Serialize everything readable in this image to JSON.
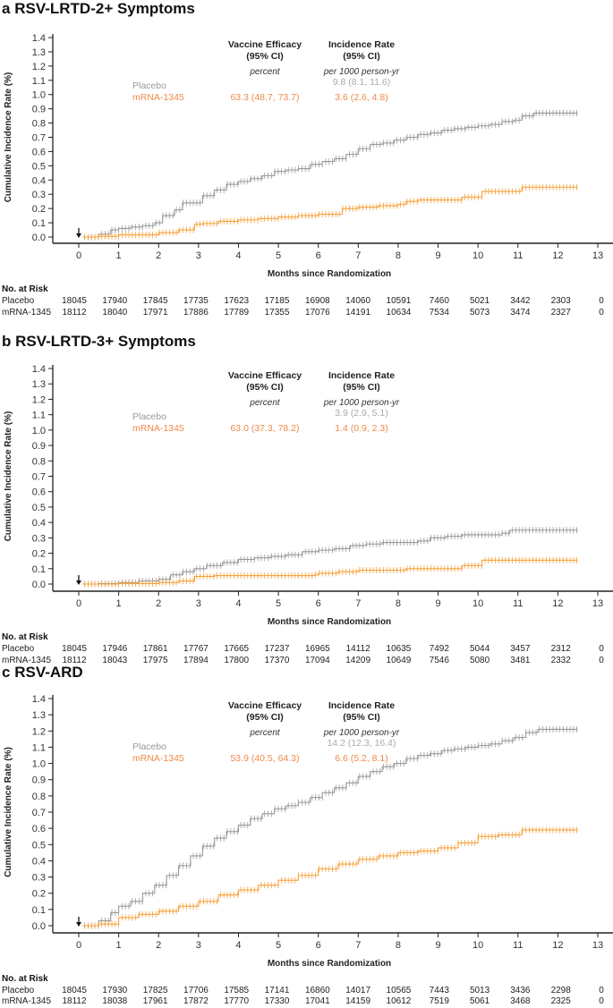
{
  "colors": {
    "placebo": "#999999",
    "vaccine": "#f5a33e",
    "vaccine_text": "#ee8a4a",
    "axis": "#222222"
  },
  "chart_data": [
    {
      "type": "line",
      "panel_letter": "a",
      "title": "RSV-LRTD-2+ Symptoms",
      "xlabel": "Months since Randomization",
      "ylabel": "Cumulative Incidence Rate (%)",
      "xlim": [
        0,
        13
      ],
      "ylim": [
        0,
        1.4
      ],
      "xticks": [
        "0",
        "1",
        "2",
        "3",
        "4",
        "5",
        "6",
        "7",
        "8",
        "9",
        "10",
        "11",
        "12",
        "13"
      ],
      "yticks": [
        "0.0",
        "0.1",
        "0.2",
        "0.3",
        "0.4",
        "0.5",
        "0.6",
        "0.7",
        "0.8",
        "0.9",
        "1.0",
        "1.1",
        "1.2",
        "1.3",
        "1.4"
      ],
      "grid": false,
      "annotation": {
        "ve_header": "Vaccine Efficacy",
        "ve_header2": "(95% CI)",
        "ve_unit": "percent",
        "ir_header": "Incidence Rate",
        "ir_header2": "(95% CI)",
        "ir_unit": "per 1000 person-yr",
        "placebo_label": "Placebo",
        "vaccine_label": "mRNA-1345",
        "placebo_ir": "9.8 (8.1, 11.6)",
        "vaccine_ve": "63.3 (48.7, 73.7)",
        "vaccine_ir": "3.6 (2.6, 4.8)"
      },
      "series": [
        {
          "name": "Placebo",
          "x": [
            0.1,
            0.5,
            0.8,
            1.0,
            1.3,
            1.6,
            1.9,
            2.1,
            2.4,
            2.6,
            2.9,
            3.1,
            3.4,
            3.7,
            4.0,
            4.3,
            4.6,
            4.9,
            5.2,
            5.5,
            5.8,
            6.1,
            6.4,
            6.7,
            7.0,
            7.3,
            7.6,
            7.9,
            8.2,
            8.5,
            8.8,
            9.1,
            9.4,
            9.7,
            10.0,
            10.3,
            10.6,
            10.9,
            11.1,
            11.4,
            11.8,
            12.5
          ],
          "y": [
            0.0,
            0.02,
            0.05,
            0.06,
            0.07,
            0.08,
            0.1,
            0.15,
            0.19,
            0.24,
            0.24,
            0.29,
            0.33,
            0.37,
            0.39,
            0.41,
            0.43,
            0.46,
            0.47,
            0.48,
            0.51,
            0.53,
            0.55,
            0.58,
            0.62,
            0.65,
            0.66,
            0.68,
            0.7,
            0.72,
            0.73,
            0.75,
            0.76,
            0.77,
            0.78,
            0.79,
            0.81,
            0.82,
            0.85,
            0.87,
            0.87,
            0.87
          ]
        },
        {
          "name": "mRNA-1345",
          "x": [
            0.1,
            0.5,
            1.0,
            1.5,
            2.0,
            2.5,
            2.9,
            3.1,
            3.5,
            4.0,
            4.5,
            5.0,
            5.5,
            6.0,
            6.4,
            6.6,
            7.0,
            7.5,
            8.0,
            8.2,
            8.5,
            9.0,
            9.5,
            9.6,
            10.0,
            10.1,
            10.5,
            11.0,
            11.1,
            11.5,
            12.5
          ],
          "y": [
            0.0,
            0.005,
            0.015,
            0.015,
            0.03,
            0.05,
            0.09,
            0.095,
            0.11,
            0.12,
            0.13,
            0.14,
            0.15,
            0.16,
            0.16,
            0.2,
            0.21,
            0.22,
            0.23,
            0.25,
            0.26,
            0.26,
            0.26,
            0.28,
            0.28,
            0.32,
            0.32,
            0.32,
            0.35,
            0.35,
            0.35
          ]
        }
      ],
      "at_risk": {
        "title": "No. at Risk",
        "rows": [
          {
            "label": "Placebo",
            "values": [
              "18045",
              "17940",
              "17845",
              "17735",
              "17623",
              "17185",
              "16908",
              "14060",
              "10591",
              "7460",
              "5021",
              "3442",
              "2303",
              "0"
            ]
          },
          {
            "label": "mRNA-1345",
            "values": [
              "18112",
              "18040",
              "17971",
              "17886",
              "17789",
              "17355",
              "17076",
              "14191",
              "10634",
              "7534",
              "5073",
              "3474",
              "2327",
              "0"
            ]
          }
        ]
      }
    },
    {
      "type": "line",
      "panel_letter": "b",
      "title": "RSV-LRTD-3+ Symptoms",
      "xlabel": "Months since Randomization",
      "ylabel": "Cumulative Incidence Rate (%)",
      "xlim": [
        0,
        13
      ],
      "ylim": [
        0,
        1.4
      ],
      "xticks": [
        "0",
        "1",
        "2",
        "3",
        "4",
        "5",
        "6",
        "7",
        "8",
        "9",
        "10",
        "11",
        "12",
        "13"
      ],
      "yticks": [
        "0.0",
        "0.1",
        "0.2",
        "0.3",
        "0.4",
        "0.5",
        "0.6",
        "0.7",
        "0.8",
        "0.9",
        "1.0",
        "1.1",
        "1.2",
        "1.3",
        "1.4"
      ],
      "grid": false,
      "annotation": {
        "ve_header": "Vaccine Efficacy",
        "ve_header2": "(95% CI)",
        "ve_unit": "percent",
        "ir_header": "Incidence Rate",
        "ir_header2": "(95% CI)",
        "ir_unit": "per 1000 person-yr",
        "placebo_label": "Placebo",
        "vaccine_label": "mRNA-1345",
        "placebo_ir": "3.9 (2.9, 5.1)",
        "vaccine_ve": "63.0 (37.3, 78.2)",
        "vaccine_ir": "1.4 (0.9, 2.3)"
      },
      "series": [
        {
          "name": "Placebo",
          "x": [
            0.1,
            0.5,
            1.0,
            1.5,
            2.0,
            2.3,
            2.6,
            2.9,
            3.2,
            3.6,
            4.0,
            4.4,
            4.8,
            5.2,
            5.6,
            6.0,
            6.4,
            6.8,
            7.2,
            7.6,
            8.0,
            8.5,
            8.8,
            9.2,
            9.6,
            10.0,
            10.6,
            10.8,
            11.2,
            12.5
          ],
          "y": [
            0.0,
            0.003,
            0.01,
            0.02,
            0.03,
            0.06,
            0.08,
            0.1,
            0.12,
            0.14,
            0.16,
            0.17,
            0.18,
            0.19,
            0.21,
            0.22,
            0.23,
            0.25,
            0.26,
            0.27,
            0.27,
            0.28,
            0.3,
            0.31,
            0.32,
            0.32,
            0.33,
            0.35,
            0.35,
            0.35
          ]
        },
        {
          "name": "mRNA-1345",
          "x": [
            0.1,
            1.0,
            2.0,
            2.5,
            2.9,
            3.4,
            4.0,
            5.0,
            5.9,
            6.0,
            6.5,
            7.0,
            7.5,
            8.0,
            8.2,
            9.0,
            9.5,
            9.6,
            10.0,
            10.1,
            11.0,
            12.5
          ],
          "y": [
            0.0,
            0.003,
            0.01,
            0.02,
            0.05,
            0.055,
            0.055,
            0.055,
            0.06,
            0.07,
            0.08,
            0.09,
            0.09,
            0.09,
            0.1,
            0.1,
            0.1,
            0.12,
            0.12,
            0.155,
            0.155,
            0.155
          ]
        }
      ],
      "at_risk": {
        "title": "No. at Risk",
        "rows": [
          {
            "label": "Placebo",
            "values": [
              "18045",
              "17946",
              "17861",
              "17767",
              "17665",
              "17237",
              "16965",
              "14112",
              "10635",
              "7492",
              "5044",
              "3457",
              "2312",
              "0"
            ]
          },
          {
            "label": "mRNA-1345",
            "values": [
              "18112",
              "18043",
              "17975",
              "17894",
              "17800",
              "17370",
              "17094",
              "14209",
              "10649",
              "7546",
              "5080",
              "3481",
              "2332",
              "0"
            ]
          }
        ]
      }
    },
    {
      "type": "line",
      "panel_letter": "c",
      "title": "RSV-ARD",
      "xlabel": "Months since Randomization",
      "ylabel": "Cumulative Incidence Rate (%)",
      "xlim": [
        0,
        13
      ],
      "ylim": [
        0,
        1.4
      ],
      "xticks": [
        "0",
        "1",
        "2",
        "3",
        "4",
        "5",
        "6",
        "7",
        "8",
        "9",
        "10",
        "11",
        "12",
        "13"
      ],
      "yticks": [
        "0.0",
        "0.1",
        "0.2",
        "0.3",
        "0.4",
        "0.5",
        "0.6",
        "0.7",
        "0.8",
        "0.9",
        "1.0",
        "1.1",
        "1.2",
        "1.3",
        "1.4"
      ],
      "grid": false,
      "annotation": {
        "ve_header": "Vaccine Efficacy",
        "ve_header2": "(95% CI)",
        "ve_unit": "percent",
        "ir_header": "Incidence Rate",
        "ir_header2": "(95% CI)",
        "ir_unit": "per 1000 person-yr",
        "placebo_label": "Placebo",
        "vaccine_label": "mRNA-1345",
        "placebo_ir": "14.2 (12.3, 16.4)",
        "vaccine_ve": "53.9 (40.5, 64.3)",
        "vaccine_ir": "6.6 (5.2, 8.1)"
      },
      "series": [
        {
          "name": "Placebo",
          "x": [
            0.1,
            0.5,
            0.8,
            1.0,
            1.3,
            1.6,
            1.9,
            2.2,
            2.5,
            2.8,
            3.1,
            3.4,
            3.7,
            4.0,
            4.3,
            4.6,
            4.9,
            5.2,
            5.5,
            5.8,
            6.1,
            6.4,
            6.7,
            7.0,
            7.3,
            7.6,
            7.9,
            8.2,
            8.5,
            8.8,
            9.1,
            9.4,
            9.7,
            10.0,
            10.3,
            10.6,
            10.9,
            11.2,
            11.5,
            12.5
          ],
          "y": [
            0.0,
            0.03,
            0.08,
            0.12,
            0.15,
            0.2,
            0.25,
            0.31,
            0.37,
            0.43,
            0.49,
            0.54,
            0.58,
            0.62,
            0.66,
            0.69,
            0.72,
            0.74,
            0.76,
            0.79,
            0.82,
            0.85,
            0.88,
            0.92,
            0.95,
            0.98,
            1.0,
            1.03,
            1.05,
            1.06,
            1.08,
            1.09,
            1.1,
            1.11,
            1.12,
            1.14,
            1.16,
            1.19,
            1.21,
            1.21
          ]
        },
        {
          "name": "mRNA-1345",
          "x": [
            0.1,
            0.5,
            1.0,
            1.5,
            2.0,
            2.5,
            3.0,
            3.5,
            4.0,
            4.5,
            5.0,
            5.5,
            6.0,
            6.5,
            7.0,
            7.5,
            8.0,
            8.5,
            9.0,
            9.5,
            10.0,
            10.5,
            11.0,
            11.1,
            12.5
          ],
          "y": [
            0.0,
            0.01,
            0.05,
            0.07,
            0.09,
            0.12,
            0.15,
            0.19,
            0.22,
            0.25,
            0.28,
            0.31,
            0.35,
            0.38,
            0.41,
            0.43,
            0.45,
            0.46,
            0.48,
            0.51,
            0.55,
            0.56,
            0.56,
            0.59,
            0.59
          ]
        }
      ],
      "at_risk": {
        "title": "No. at Risk",
        "rows": [
          {
            "label": "Placebo",
            "values": [
              "18045",
              "17930",
              "17825",
              "17706",
              "17585",
              "17141",
              "16860",
              "14017",
              "10565",
              "7443",
              "5013",
              "3436",
              "2298",
              "0"
            ]
          },
          {
            "label": "mRNA-1345",
            "values": [
              "18112",
              "18038",
              "17961",
              "17872",
              "17770",
              "17330",
              "17041",
              "14159",
              "10612",
              "7519",
              "5061",
              "3468",
              "2325",
              "0"
            ]
          }
        ]
      }
    }
  ]
}
